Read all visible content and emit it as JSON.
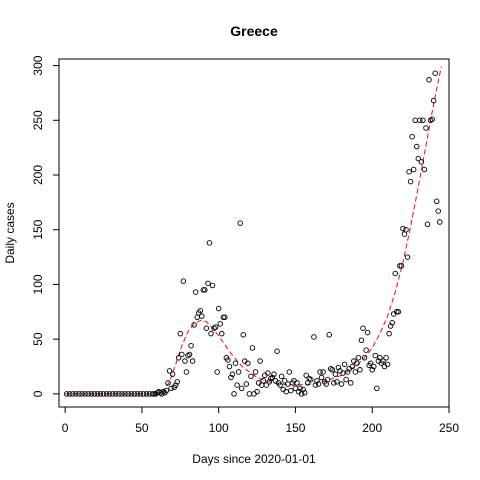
{
  "chart_data": {
    "type": "scatter",
    "title": "Greece",
    "xlabel": "Days since 2020-01-01",
    "ylabel": "Daily cases",
    "xlim": [
      -4,
      250
    ],
    "ylim": [
      -12,
      306
    ],
    "xticks": [
      0,
      50,
      100,
      150,
      200,
      250
    ],
    "yticks": [
      0,
      50,
      100,
      150,
      200,
      250,
      300
    ],
    "xtick_labels": [
      "0",
      "50",
      "100",
      "150",
      "200",
      "250"
    ],
    "ytick_labels": [
      "0",
      "50",
      "100",
      "150",
      "200",
      "250",
      "300"
    ],
    "grid": false,
    "legend": "none",
    "colors": {
      "points": "#000000",
      "fit": "#ff0000"
    },
    "series": [
      {
        "kind": "points",
        "marker": "open-circle",
        "points": [
          [
            1,
            0
          ],
          [
            3,
            0
          ],
          [
            5,
            0
          ],
          [
            7,
            0
          ],
          [
            9,
            0
          ],
          [
            11,
            0
          ],
          [
            13,
            0
          ],
          [
            15,
            0
          ],
          [
            17,
            0
          ],
          [
            19,
            0
          ],
          [
            21,
            0
          ],
          [
            23,
            0
          ],
          [
            25,
            0
          ],
          [
            27,
            0
          ],
          [
            29,
            0
          ],
          [
            31,
            0
          ],
          [
            33,
            0
          ],
          [
            35,
            0
          ],
          [
            37,
            0
          ],
          [
            39,
            0
          ],
          [
            41,
            0
          ],
          [
            43,
            0
          ],
          [
            45,
            0
          ],
          [
            47,
            0
          ],
          [
            49,
            0
          ],
          [
            51,
            0
          ],
          [
            53,
            0
          ],
          [
            55,
            0
          ],
          [
            57,
            0
          ],
          [
            58,
            0
          ],
          [
            59,
            0
          ],
          [
            60,
            1
          ],
          [
            61,
            2
          ],
          [
            62,
            1
          ],
          [
            63,
            0
          ],
          [
            64,
            2
          ],
          [
            65,
            1
          ],
          [
            66,
            3
          ],
          [
            67,
            10
          ],
          [
            68,
            21
          ],
          [
            69,
            5
          ],
          [
            70,
            18
          ],
          [
            71,
            6
          ],
          [
            72,
            8
          ],
          [
            73,
            11
          ],
          [
            74,
            33
          ],
          [
            75,
            55
          ],
          [
            76,
            36
          ],
          [
            77,
            103
          ],
          [
            78,
            30
          ],
          [
            79,
            20
          ],
          [
            80,
            35
          ],
          [
            81,
            36
          ],
          [
            82,
            44
          ],
          [
            83,
            30
          ],
          [
            84,
            63
          ],
          [
            85,
            93
          ],
          [
            86,
            70
          ],
          [
            87,
            74
          ],
          [
            88,
            76
          ],
          [
            89,
            71
          ],
          [
            90,
            95
          ],
          [
            91,
            95
          ],
          [
            92,
            60
          ],
          [
            93,
            101
          ],
          [
            94,
            138
          ],
          [
            95,
            55
          ],
          [
            96,
            99
          ],
          [
            97,
            60
          ],
          [
            98,
            61
          ],
          [
            99,
            20
          ],
          [
            100,
            78
          ],
          [
            101,
            64
          ],
          [
            102,
            55
          ],
          [
            103,
            70
          ],
          [
            104,
            70
          ],
          [
            105,
            33
          ],
          [
            106,
            31
          ],
          [
            107,
            25
          ],
          [
            108,
            15
          ],
          [
            109,
            18
          ],
          [
            110,
            0
          ],
          [
            111,
            28
          ],
          [
            112,
            8
          ],
          [
            113,
            20
          ],
          [
            114,
            156
          ],
          [
            115,
            5
          ],
          [
            116,
            54
          ],
          [
            117,
            30
          ],
          [
            118,
            9
          ],
          [
            119,
            28
          ],
          [
            120,
            0
          ],
          [
            121,
            16
          ],
          [
            122,
            42
          ],
          [
            123,
            0
          ],
          [
            124,
            20
          ],
          [
            125,
            2
          ],
          [
            126,
            10
          ],
          [
            127,
            30
          ],
          [
            128,
            8
          ],
          [
            129,
            12
          ],
          [
            130,
            17
          ],
          [
            131,
            8
          ],
          [
            132,
            19
          ],
          [
            133,
            11
          ],
          [
            134,
            14
          ],
          [
            135,
            15
          ],
          [
            136,
            18
          ],
          [
            137,
            12
          ],
          [
            138,
            39
          ],
          [
            139,
            10
          ],
          [
            140,
            8
          ],
          [
            141,
            16
          ],
          [
            142,
            4
          ],
          [
            143,
            12
          ],
          [
            144,
            2
          ],
          [
            145,
            9
          ],
          [
            146,
            20
          ],
          [
            147,
            3
          ],
          [
            148,
            10
          ],
          [
            149,
            12
          ],
          [
            150,
            5
          ],
          [
            151,
            10
          ],
          [
            152,
            2
          ],
          [
            153,
            5
          ],
          [
            154,
            0
          ],
          [
            155,
            4
          ],
          [
            156,
            1
          ],
          [
            157,
            17
          ],
          [
            158,
            10
          ],
          [
            159,
            14
          ],
          [
            160,
            13
          ],
          [
            162,
            52
          ],
          [
            163,
            8
          ],
          [
            164,
            12
          ],
          [
            165,
            9
          ],
          [
            166,
            20
          ],
          [
            167,
            15
          ],
          [
            168,
            20
          ],
          [
            169,
            11
          ],
          [
            170,
            9
          ],
          [
            171,
            13
          ],
          [
            172,
            54
          ],
          [
            173,
            23
          ],
          [
            174,
            22
          ],
          [
            175,
            10
          ],
          [
            176,
            18
          ],
          [
            177,
            11
          ],
          [
            178,
            24
          ],
          [
            179,
            21
          ],
          [
            180,
            9
          ],
          [
            181,
            19
          ],
          [
            182,
            27
          ],
          [
            183,
            13
          ],
          [
            184,
            20
          ],
          [
            185,
            23
          ],
          [
            186,
            10
          ],
          [
            187,
            25
          ],
          [
            188,
            30
          ],
          [
            189,
            20
          ],
          [
            190,
            28
          ],
          [
            191,
            33
          ],
          [
            192,
            22
          ],
          [
            193,
            49
          ],
          [
            194,
            60
          ],
          [
            195,
            33
          ],
          [
            196,
            40
          ],
          [
            197,
            56
          ],
          [
            198,
            26
          ],
          [
            199,
            28
          ],
          [
            200,
            22
          ],
          [
            201,
            25
          ],
          [
            202,
            35
          ],
          [
            203,
            5
          ],
          [
            204,
            30
          ],
          [
            205,
            33
          ],
          [
            206,
            28
          ],
          [
            207,
            30
          ],
          [
            208,
            25
          ],
          [
            209,
            33
          ],
          [
            210,
            27
          ],
          [
            211,
            55
          ],
          [
            212,
            62
          ],
          [
            213,
            65
          ],
          [
            214,
            73
          ],
          [
            215,
            110
          ],
          [
            216,
            75
          ],
          [
            217,
            75
          ],
          [
            218,
            117
          ],
          [
            219,
            117
          ],
          [
            220,
            151
          ],
          [
            221,
            146
          ],
          [
            222,
            150
          ],
          [
            223,
            125
          ],
          [
            224,
            203
          ],
          [
            225,
            194
          ],
          [
            226,
            235
          ],
          [
            227,
            205
          ],
          [
            228,
            250
          ],
          [
            229,
            226
          ],
          [
            230,
            215
          ],
          [
            231,
            250
          ],
          [
            232,
            212
          ],
          [
            233,
            250
          ],
          [
            234,
            205
          ],
          [
            235,
            243
          ],
          [
            236,
            155
          ],
          [
            237,
            287
          ],
          [
            238,
            250
          ],
          [
            239,
            251
          ],
          [
            240,
            268
          ],
          [
            241,
            293
          ],
          [
            242,
            176
          ],
          [
            243,
            167
          ],
          [
            244,
            157
          ]
        ]
      },
      {
        "kind": "fit",
        "style": "dashed-line",
        "points": [
          [
            0,
            0
          ],
          [
            10,
            0
          ],
          [
            20,
            0
          ],
          [
            30,
            0
          ],
          [
            40,
            0
          ],
          [
            50,
            0
          ],
          [
            55,
            0
          ],
          [
            60,
            1
          ],
          [
            64,
            3
          ],
          [
            68,
            11
          ],
          [
            72,
            27
          ],
          [
            76,
            44
          ],
          [
            80,
            57
          ],
          [
            84,
            64
          ],
          [
            88,
            67
          ],
          [
            92,
            66
          ],
          [
            96,
            60
          ],
          [
            100,
            53
          ],
          [
            104,
            45
          ],
          [
            108,
            37
          ],
          [
            112,
            30
          ],
          [
            116,
            24
          ],
          [
            120,
            20
          ],
          [
            125,
            15
          ],
          [
            130,
            12
          ],
          [
            135,
            10
          ],
          [
            140,
            9
          ],
          [
            150,
            8
          ],
          [
            160,
            9
          ],
          [
            170,
            12
          ],
          [
            180,
            17
          ],
          [
            190,
            26
          ],
          [
            195,
            33
          ],
          [
            200,
            42
          ],
          [
            205,
            55
          ],
          [
            210,
            71
          ],
          [
            215,
            93
          ],
          [
            220,
            120
          ],
          [
            225,
            153
          ],
          [
            230,
            189
          ],
          [
            235,
            227
          ],
          [
            240,
            265
          ],
          [
            245,
            299
          ]
        ]
      }
    ]
  }
}
